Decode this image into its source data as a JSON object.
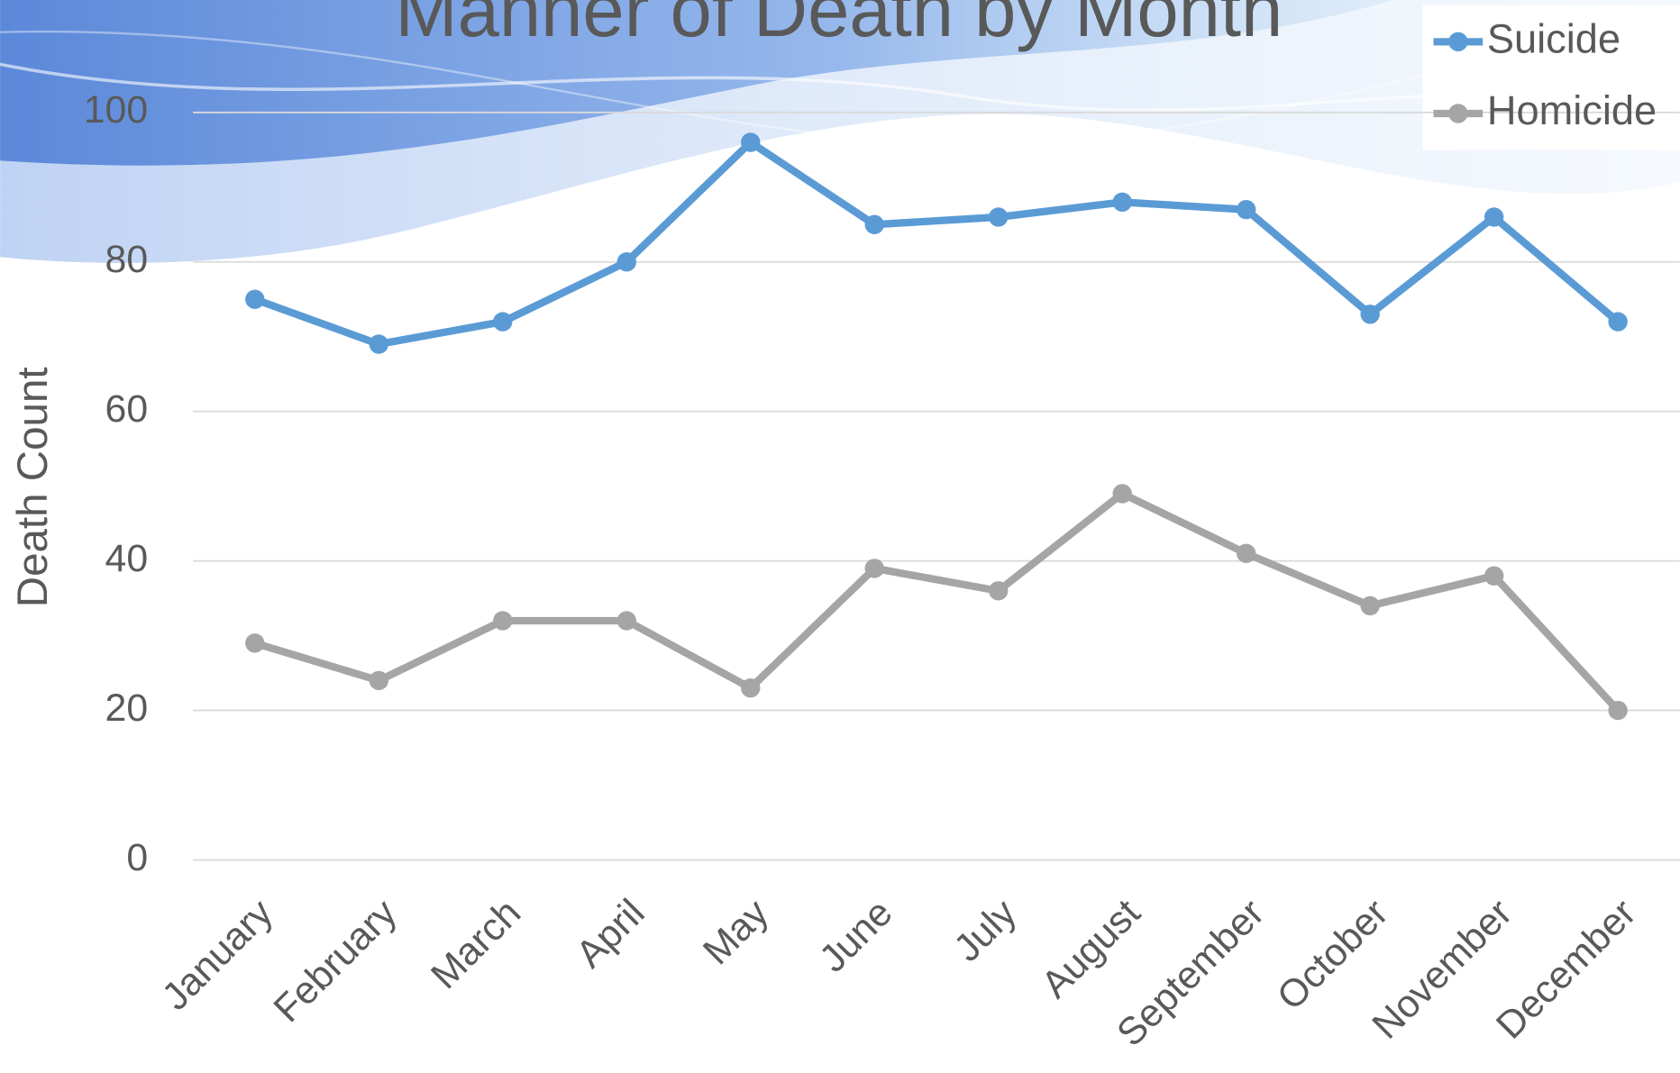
{
  "chart_data": {
    "type": "line",
    "title": "Manner of Death by Month",
    "y_label": "Death Count",
    "categories": [
      "January",
      "February",
      "March",
      "April",
      "May",
      "June",
      "July",
      "August",
      "September",
      "October",
      "November",
      "December"
    ],
    "series": [
      {
        "name": "Suicide",
        "color": "#5b9bd5",
        "values": [
          75,
          69,
          72,
          80,
          96,
          85,
          86,
          88,
          87,
          73,
          86,
          72
        ]
      },
      {
        "name": "Homicide",
        "color": "#a5a5a5",
        "values": [
          29,
          24,
          32,
          32,
          23,
          39,
          36,
          49,
          41,
          34,
          38,
          20
        ]
      }
    ],
    "ylim": [
      0,
      100
    ],
    "yticks": [
      0,
      20,
      40,
      60,
      80,
      100
    ],
    "grid": true,
    "legend": "top-right"
  }
}
